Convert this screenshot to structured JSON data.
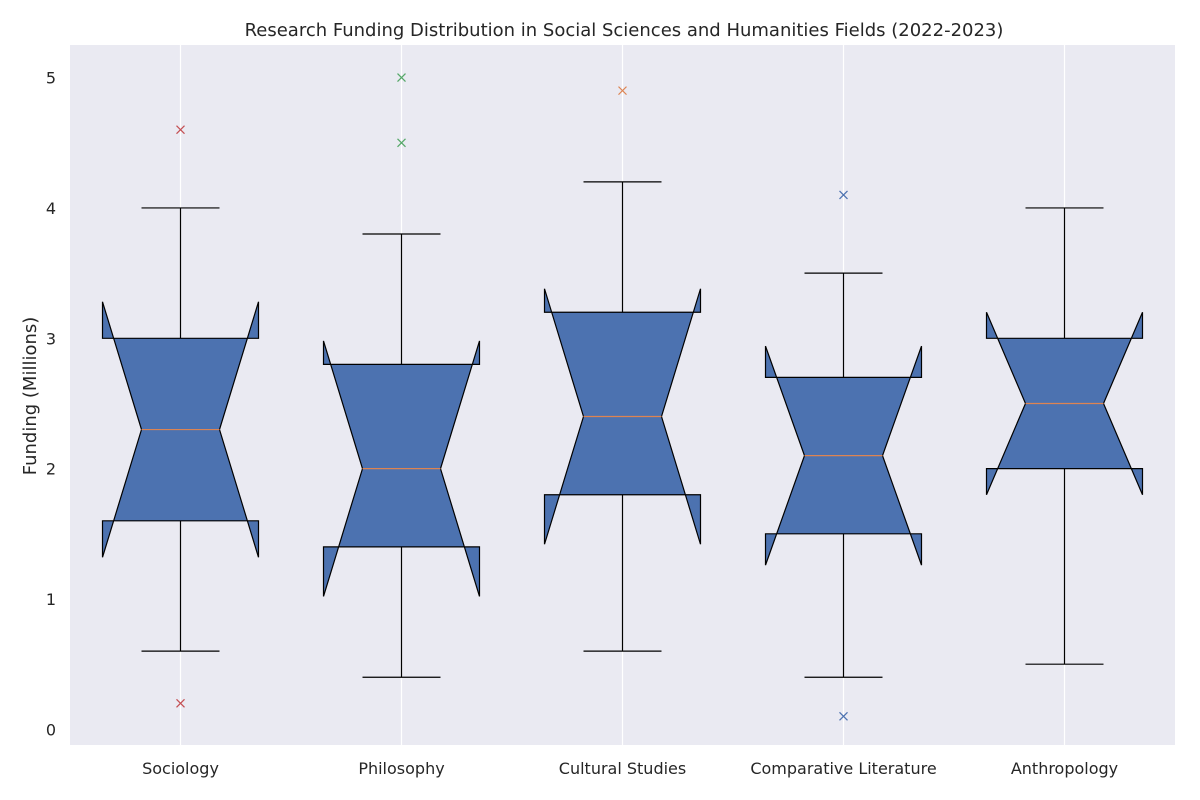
{
  "chart_data": {
    "type": "box",
    "title": "Research Funding Distribution in Social Sciences and Humanities Fields (2022-2023)",
    "xlabel": "",
    "ylabel": "Funding (Millions)",
    "ylim": [
      -0.12,
      5.25
    ],
    "yticks": [
      0,
      1,
      2,
      3,
      4,
      5
    ],
    "grid": true,
    "notched": true,
    "categories": [
      "Sociology",
      "Philosophy",
      "Cultural Studies",
      "Comparative Literature",
      "Anthropology"
    ],
    "boxes": [
      {
        "category": "Sociology",
        "whisker_low": 0.6,
        "q1": 1.6,
        "median": 2.3,
        "q3": 3.0,
        "whisker_high": 4.0,
        "notch_low": 1.32,
        "notch_high": 3.28,
        "outliers": [
          4.6,
          0.2
        ],
        "outlier_color": "#c44e52"
      },
      {
        "category": "Philosophy",
        "whisker_low": 0.4,
        "q1": 1.4,
        "median": 2.0,
        "q3": 2.8,
        "whisker_high": 3.8,
        "notch_low": 1.02,
        "notch_high": 2.98,
        "outliers": [
          5.0,
          4.5
        ],
        "outlier_color": "#55a868"
      },
      {
        "category": "Cultural Studies",
        "whisker_low": 0.6,
        "q1": 1.8,
        "median": 2.4,
        "q3": 3.2,
        "whisker_high": 4.2,
        "notch_low": 1.42,
        "notch_high": 3.38,
        "outliers": [
          4.9
        ],
        "outlier_color": "#dd8452"
      },
      {
        "category": "Comparative Literature",
        "whisker_low": 0.4,
        "q1": 1.5,
        "median": 2.1,
        "q3": 2.7,
        "whisker_high": 3.5,
        "notch_low": 1.26,
        "notch_high": 2.94,
        "outliers": [
          4.1,
          0.1
        ],
        "outlier_color": "#4c72b0"
      },
      {
        "category": "Anthropology",
        "whisker_low": 0.5,
        "q1": 2.0,
        "median": 2.5,
        "q3": 3.0,
        "whisker_high": 4.0,
        "notch_low": 1.8,
        "notch_high": 3.2,
        "outliers": [],
        "outlier_color": "#4c72b0"
      }
    ],
    "colors": {
      "box_fill": "#4c72b0",
      "box_edge": "#000000",
      "median": "#dd8452",
      "plot_background": "#eaeaf2",
      "grid": "#ffffff"
    }
  }
}
